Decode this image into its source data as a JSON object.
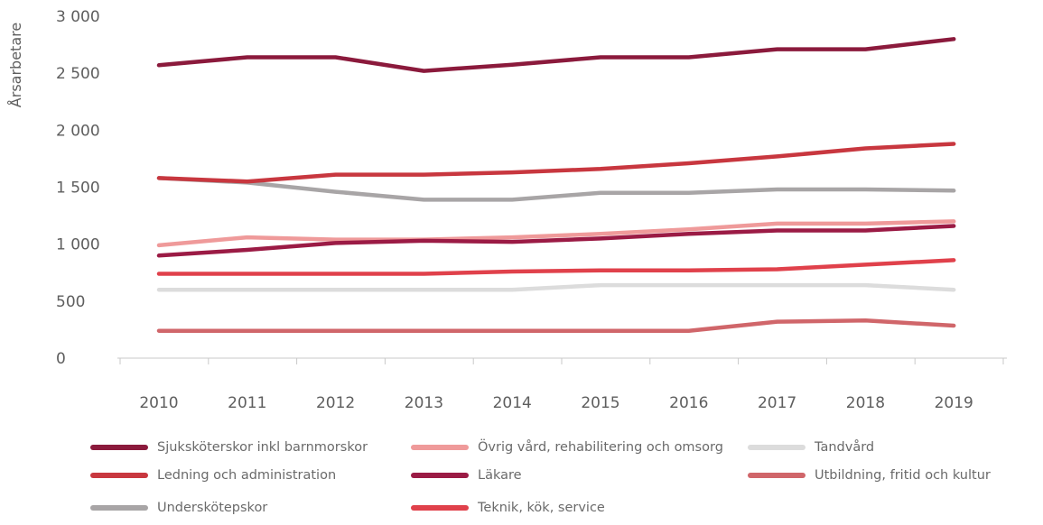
{
  "chart_data": {
    "type": "line",
    "ylabel": "Årsarbetare",
    "ylim": [
      0,
      3000
    ],
    "yticks": [
      0,
      500,
      1000,
      1500,
      2000,
      2500,
      3000
    ],
    "ytick_labels": [
      "0",
      "500",
      "1 000",
      "1 500",
      "2 000",
      "2 500",
      "3 000"
    ],
    "categories": [
      "2010",
      "2011",
      "2012",
      "2013",
      "2014",
      "2015",
      "2016",
      "2017",
      "2018",
      "2019"
    ],
    "legend_position": "bottom",
    "grid": false,
    "series": [
      {
        "name": "Sjuksköterskor inkl barnmorskor",
        "color": "#8b1a3c",
        "values": [
          2570,
          2640,
          2640,
          2520,
          2575,
          2640,
          2640,
          2710,
          2710,
          2800
        ]
      },
      {
        "name": "Ledning och administration",
        "color": "#c8373f",
        "values": [
          1580,
          1550,
          1610,
          1610,
          1630,
          1660,
          1710,
          1770,
          1840,
          1880
        ]
      },
      {
        "name": "Underskötерskor",
        "color": "#a8a5a6",
        "values": [
          1580,
          1540,
          1460,
          1390,
          1390,
          1450,
          1450,
          1480,
          1480,
          1470
        ]
      },
      {
        "name": "Övrig vård, rehabilitering och omsorg",
        "color": "#ef9a9a",
        "values": [
          990,
          1060,
          1040,
          1040,
          1060,
          1090,
          1130,
          1180,
          1180,
          1200
        ]
      },
      {
        "name": "Läkare",
        "color": "#9b1b45",
        "values": [
          900,
          950,
          1010,
          1030,
          1020,
          1050,
          1090,
          1120,
          1120,
          1160
        ]
      },
      {
        "name": "Teknik, kök, service",
        "color": "#e0414b",
        "values": [
          740,
          740,
          740,
          740,
          760,
          770,
          770,
          780,
          820,
          860
        ]
      },
      {
        "name": "Tandvård",
        "color": "#dcdcdc",
        "values": [
          600,
          600,
          600,
          600,
          600,
          640,
          640,
          640,
          640,
          600
        ]
      },
      {
        "name": "Utbildning, fritid och kultur",
        "color": "#d0666a",
        "values": [
          240,
          240,
          240,
          240,
          240,
          240,
          240,
          320,
          330,
          285
        ]
      }
    ]
  },
  "legend": [
    {
      "label": "Sjuksköterskor inkl barnmorskor",
      "color": "#8b1a3c"
    },
    {
      "label": "Övrig vård, rehabilitering och omsorg",
      "color": "#ef9a9a"
    },
    {
      "label": "Tandvård",
      "color": "#dcdcdc"
    },
    {
      "label": "Ledning och administration",
      "color": "#c8373f"
    },
    {
      "label": "Läkare",
      "color": "#9b1b45"
    },
    {
      "label": "Utbildning, fritid och kultur",
      "color": "#d0666a"
    },
    {
      "label": "Underskötерskor",
      "color": "#a8a5a6"
    },
    {
      "label": "Teknik, kök, service",
      "color": "#e0414b"
    }
  ]
}
